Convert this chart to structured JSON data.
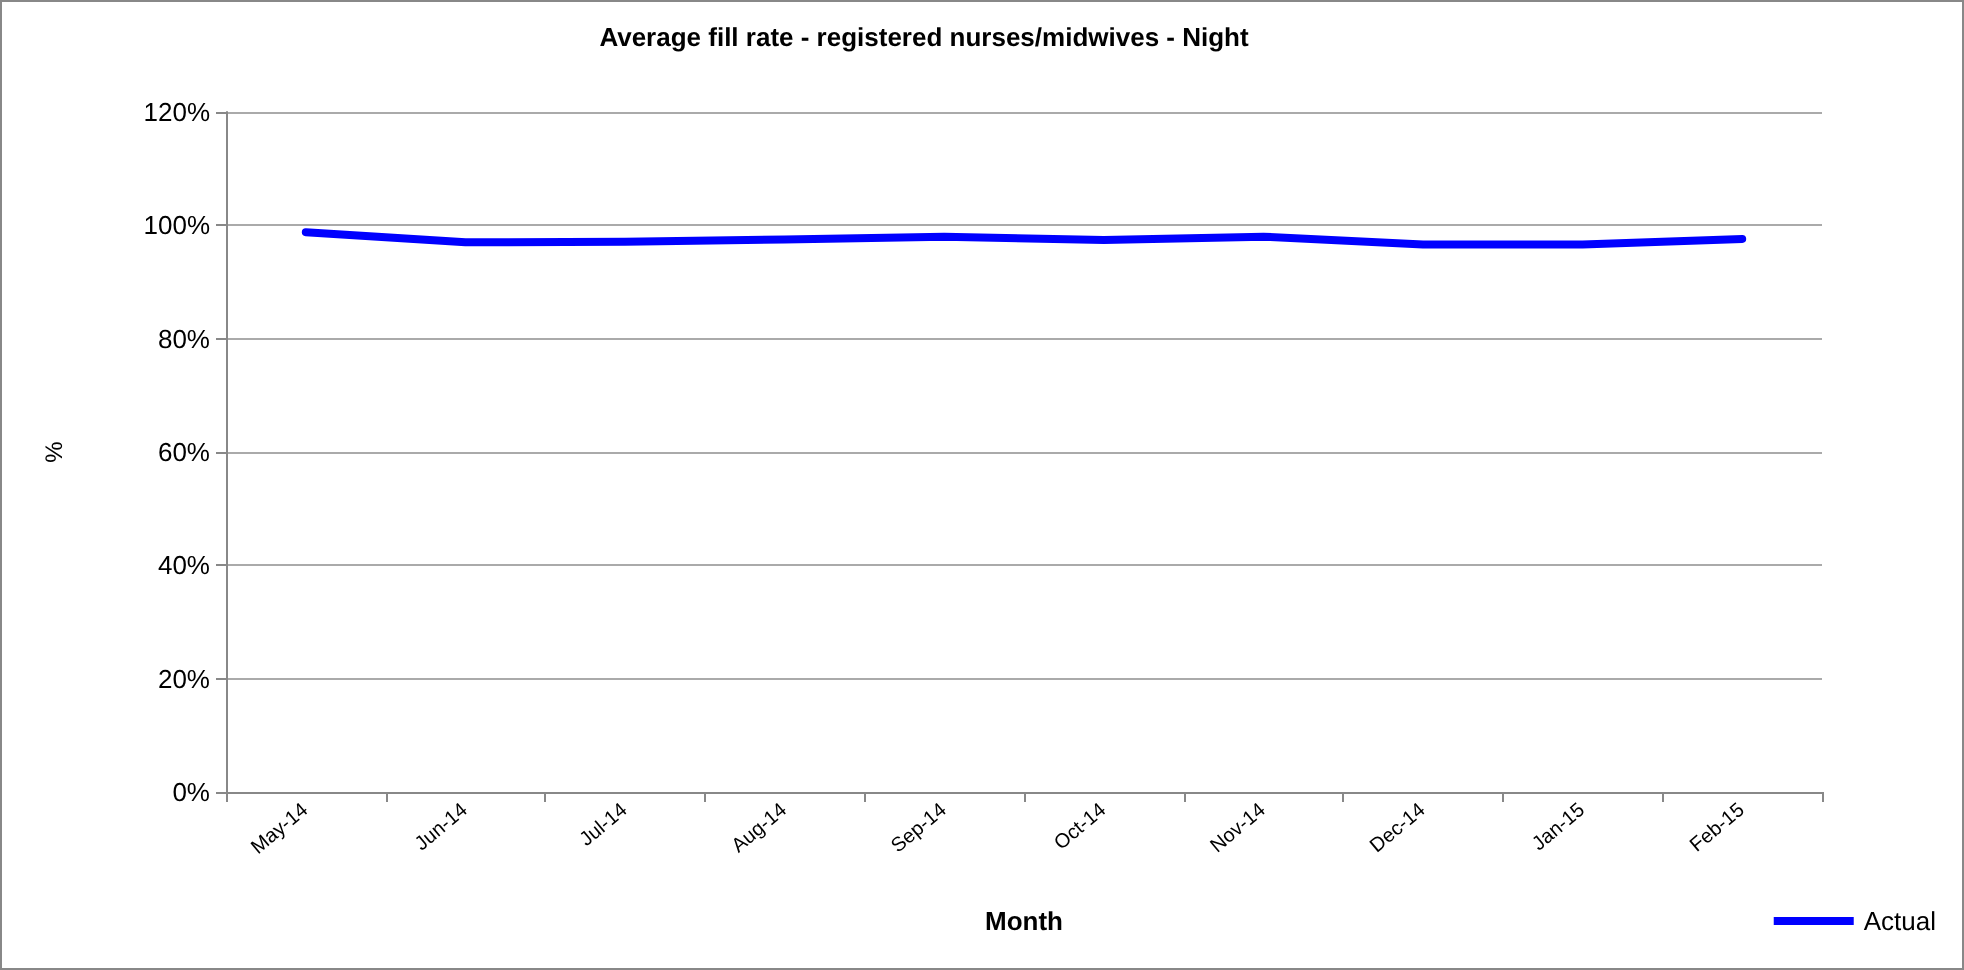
{
  "chart_data": {
    "type": "line",
    "title": "Average fill rate - registered nurses/midwives - Night",
    "xlabel": "Month",
    "ylabel": "%",
    "categories": [
      "May-14",
      "Jun-14",
      "Jul-14",
      "Aug-14",
      "Sep-14",
      "Oct-14",
      "Nov-14",
      "Dec-14",
      "Jan-15",
      "Feb-15"
    ],
    "series": [
      {
        "name": "Actual",
        "color": "#0000ff",
        "values": [
          98.8,
          97.0,
          97.1,
          97.5,
          98.0,
          97.4,
          98.0,
          96.6,
          96.6,
          97.6
        ]
      }
    ],
    "ylim": [
      0,
      120
    ],
    "yticks": [
      {
        "value": 0,
        "label": "0%"
      },
      {
        "value": 20,
        "label": "20%"
      },
      {
        "value": 40,
        "label": "40%"
      },
      {
        "value": 60,
        "label": "60%"
      },
      {
        "value": 80,
        "label": "80%"
      },
      {
        "value": 100,
        "label": "100%"
      },
      {
        "value": 120,
        "label": "120%"
      }
    ],
    "grid": "y",
    "legend": "bottom right",
    "marker": "none",
    "line_style": "solid"
  }
}
